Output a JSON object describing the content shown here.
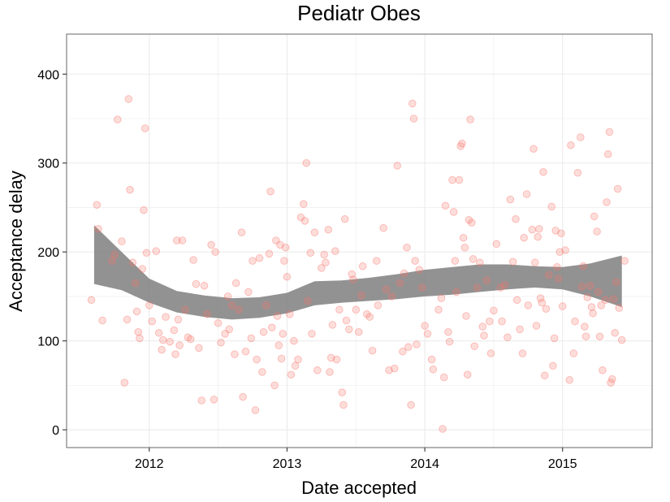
{
  "chart_data": {
    "type": "scatter",
    "title": "Pediatr Obes",
    "xlabel": "Date accepted",
    "ylabel": "Acceptance delay",
    "xlim": [
      2011.4,
      2015.65
    ],
    "ylim": [
      -20,
      445
    ],
    "x_ticks": [
      2012,
      2013,
      2014,
      2015
    ],
    "x_tick_labels": [
      "2012",
      "2013",
      "2014",
      "2015"
    ],
    "y_ticks": [
      0,
      100,
      200,
      300,
      400
    ],
    "y_tick_labels": [
      "0",
      "100",
      "200",
      "300",
      "400"
    ],
    "grid": true,
    "colors": {
      "points": "#f8766d",
      "band": "#7f7f7f",
      "grid": "#ebebeb",
      "border": "#7f7f7f"
    },
    "smooth_band": {
      "x": [
        2011.6,
        2011.8,
        2012.0,
        2012.2,
        2012.4,
        2012.6,
        2012.8,
        2013.0,
        2013.2,
        2013.4,
        2013.6,
        2013.8,
        2014.0,
        2014.2,
        2014.4,
        2014.6,
        2014.8,
        2015.0,
        2015.2,
        2015.43
      ],
      "lower": [
        164,
        157,
        143,
        132,
        127,
        124,
        126,
        131,
        140,
        143,
        145,
        147,
        150,
        152,
        155,
        158,
        160,
        158,
        150,
        138
      ],
      "upper": [
        230,
        200,
        170,
        156,
        151,
        148,
        149,
        154,
        167,
        168,
        171,
        175,
        180,
        183,
        186,
        186,
        184,
        183,
        187,
        196
      ]
    },
    "points": [
      {
        "x": 2011.62,
        "y": 253
      },
      {
        "x": 2011.63,
        "y": 226
      },
      {
        "x": 2011.58,
        "y": 146
      },
      {
        "x": 2011.66,
        "y": 123
      },
      {
        "x": 2011.73,
        "y": 190
      },
      {
        "x": 2011.75,
        "y": 197
      },
      {
        "x": 2011.77,
        "y": 349
      },
      {
        "x": 2011.8,
        "y": 212
      },
      {
        "x": 2011.82,
        "y": 53
      },
      {
        "x": 2011.84,
        "y": 124
      },
      {
        "x": 2011.85,
        "y": 372
      },
      {
        "x": 2011.86,
        "y": 270
      },
      {
        "x": 2011.88,
        "y": 188
      },
      {
        "x": 2011.9,
        "y": 165
      },
      {
        "x": 2011.91,
        "y": 133
      },
      {
        "x": 2011.92,
        "y": 110
      },
      {
        "x": 2011.93,
        "y": 103
      },
      {
        "x": 2011.95,
        "y": 181
      },
      {
        "x": 2011.96,
        "y": 247
      },
      {
        "x": 2011.97,
        "y": 339
      },
      {
        "x": 2011.98,
        "y": 199
      },
      {
        "x": 2012.0,
        "y": 140
      },
      {
        "x": 2012.02,
        "y": 122
      },
      {
        "x": 2012.05,
        "y": 201
      },
      {
        "x": 2012.07,
        "y": 109
      },
      {
        "x": 2012.09,
        "y": 90
      },
      {
        "x": 2012.1,
        "y": 101
      },
      {
        "x": 2012.12,
        "y": 127
      },
      {
        "x": 2012.15,
        "y": 99
      },
      {
        "x": 2012.18,
        "y": 112
      },
      {
        "x": 2012.19,
        "y": 85
      },
      {
        "x": 2012.2,
        "y": 213
      },
      {
        "x": 2012.21,
        "y": 124
      },
      {
        "x": 2012.22,
        "y": 95
      },
      {
        "x": 2012.24,
        "y": 213
      },
      {
        "x": 2012.26,
        "y": 135
      },
      {
        "x": 2012.28,
        "y": 104
      },
      {
        "x": 2012.3,
        "y": 102
      },
      {
        "x": 2012.32,
        "y": 191
      },
      {
        "x": 2012.34,
        "y": 164
      },
      {
        "x": 2012.36,
        "y": 92
      },
      {
        "x": 2012.38,
        "y": 33
      },
      {
        "x": 2012.4,
        "y": 162
      },
      {
        "x": 2012.42,
        "y": 130
      },
      {
        "x": 2012.45,
        "y": 208
      },
      {
        "x": 2012.47,
        "y": 34
      },
      {
        "x": 2012.48,
        "y": 200
      },
      {
        "x": 2012.5,
        "y": 120
      },
      {
        "x": 2012.52,
        "y": 98
      },
      {
        "x": 2012.55,
        "y": 108
      },
      {
        "x": 2012.57,
        "y": 150
      },
      {
        "x": 2012.58,
        "y": 113
      },
      {
        "x": 2012.6,
        "y": 140
      },
      {
        "x": 2012.62,
        "y": 85
      },
      {
        "x": 2012.63,
        "y": 165
      },
      {
        "x": 2012.65,
        "y": 135
      },
      {
        "x": 2012.67,
        "y": 222
      },
      {
        "x": 2012.68,
        "y": 37
      },
      {
        "x": 2012.7,
        "y": 88
      },
      {
        "x": 2012.72,
        "y": 155
      },
      {
        "x": 2012.74,
        "y": 103
      },
      {
        "x": 2012.75,
        "y": 190
      },
      {
        "x": 2012.77,
        "y": 22
      },
      {
        "x": 2012.78,
        "y": 79
      },
      {
        "x": 2012.8,
        "y": 193
      },
      {
        "x": 2012.82,
        "y": 65
      },
      {
        "x": 2012.83,
        "y": 110
      },
      {
        "x": 2012.85,
        "y": 140
      },
      {
        "x": 2012.87,
        "y": 198
      },
      {
        "x": 2012.88,
        "y": 268
      },
      {
        "x": 2012.89,
        "y": 115
      },
      {
        "x": 2012.91,
        "y": 50
      },
      {
        "x": 2012.92,
        "y": 213
      },
      {
        "x": 2012.93,
        "y": 128
      },
      {
        "x": 2012.94,
        "y": 95
      },
      {
        "x": 2012.95,
        "y": 208
      },
      {
        "x": 2012.96,
        "y": 80
      },
      {
        "x": 2012.97,
        "y": 108
      },
      {
        "x": 2012.98,
        "y": 190
      },
      {
        "x": 2012.99,
        "y": 205
      },
      {
        "x": 2013.0,
        "y": 172
      },
      {
        "x": 2013.02,
        "y": 130
      },
      {
        "x": 2013.03,
        "y": 62
      },
      {
        "x": 2013.05,
        "y": 100
      },
      {
        "x": 2013.06,
        "y": 72
      },
      {
        "x": 2013.08,
        "y": 79
      },
      {
        "x": 2013.1,
        "y": 239
      },
      {
        "x": 2013.12,
        "y": 254
      },
      {
        "x": 2013.13,
        "y": 235
      },
      {
        "x": 2013.14,
        "y": 300
      },
      {
        "x": 2013.15,
        "y": 145
      },
      {
        "x": 2013.17,
        "y": 199
      },
      {
        "x": 2013.18,
        "y": 108
      },
      {
        "x": 2013.2,
        "y": 222
      },
      {
        "x": 2013.22,
        "y": 67
      },
      {
        "x": 2013.25,
        "y": 182
      },
      {
        "x": 2013.27,
        "y": 197
      },
      {
        "x": 2013.28,
        "y": 188
      },
      {
        "x": 2013.3,
        "y": 225
      },
      {
        "x": 2013.31,
        "y": 65
      },
      {
        "x": 2013.32,
        "y": 81
      },
      {
        "x": 2013.33,
        "y": 118
      },
      {
        "x": 2013.35,
        "y": 201
      },
      {
        "x": 2013.36,
        "y": 79
      },
      {
        "x": 2013.38,
        "y": 135
      },
      {
        "x": 2013.4,
        "y": 42
      },
      {
        "x": 2013.41,
        "y": 28
      },
      {
        "x": 2013.42,
        "y": 237
      },
      {
        "x": 2013.43,
        "y": 123
      },
      {
        "x": 2013.45,
        "y": 113
      },
      {
        "x": 2013.47,
        "y": 175
      },
      {
        "x": 2013.48,
        "y": 169
      },
      {
        "x": 2013.5,
        "y": 135
      },
      {
        "x": 2013.52,
        "y": 110
      },
      {
        "x": 2013.54,
        "y": 151
      },
      {
        "x": 2013.55,
        "y": 184
      },
      {
        "x": 2013.58,
        "y": 130
      },
      {
        "x": 2013.6,
        "y": 127
      },
      {
        "x": 2013.62,
        "y": 89
      },
      {
        "x": 2013.65,
        "y": 190
      },
      {
        "x": 2013.66,
        "y": 140
      },
      {
        "x": 2013.7,
        "y": 227
      },
      {
        "x": 2013.72,
        "y": 158
      },
      {
        "x": 2013.74,
        "y": 67
      },
      {
        "x": 2013.76,
        "y": 150
      },
      {
        "x": 2013.78,
        "y": 69
      },
      {
        "x": 2013.8,
        "y": 297
      },
      {
        "x": 2013.82,
        "y": 165
      },
      {
        "x": 2013.84,
        "y": 88
      },
      {
        "x": 2013.85,
        "y": 176
      },
      {
        "x": 2013.87,
        "y": 205
      },
      {
        "x": 2013.88,
        "y": 93
      },
      {
        "x": 2013.9,
        "y": 28
      },
      {
        "x": 2013.91,
        "y": 367
      },
      {
        "x": 2013.92,
        "y": 350
      },
      {
        "x": 2013.93,
        "y": 190
      },
      {
        "x": 2013.94,
        "y": 96
      },
      {
        "x": 2013.96,
        "y": 180
      },
      {
        "x": 2013.98,
        "y": 160
      },
      {
        "x": 2014.0,
        "y": 117
      },
      {
        "x": 2014.02,
        "y": 108
      },
      {
        "x": 2014.05,
        "y": 79
      },
      {
        "x": 2014.06,
        "y": 68
      },
      {
        "x": 2014.1,
        "y": 135
      },
      {
        "x": 2014.12,
        "y": 148
      },
      {
        "x": 2014.13,
        "y": 1
      },
      {
        "x": 2014.14,
        "y": 59
      },
      {
        "x": 2014.15,
        "y": 252
      },
      {
        "x": 2014.17,
        "y": 110
      },
      {
        "x": 2014.18,
        "y": 99
      },
      {
        "x": 2014.2,
        "y": 281
      },
      {
        "x": 2014.21,
        "y": 245
      },
      {
        "x": 2014.22,
        "y": 190
      },
      {
        "x": 2014.23,
        "y": 155
      },
      {
        "x": 2014.25,
        "y": 281
      },
      {
        "x": 2014.26,
        "y": 319
      },
      {
        "x": 2014.27,
        "y": 322
      },
      {
        "x": 2014.28,
        "y": 216
      },
      {
        "x": 2014.29,
        "y": 205
      },
      {
        "x": 2014.3,
        "y": 128
      },
      {
        "x": 2014.31,
        "y": 62
      },
      {
        "x": 2014.32,
        "y": 236
      },
      {
        "x": 2014.33,
        "y": 349
      },
      {
        "x": 2014.34,
        "y": 233
      },
      {
        "x": 2014.35,
        "y": 192
      },
      {
        "x": 2014.36,
        "y": 94
      },
      {
        "x": 2014.38,
        "y": 160
      },
      {
        "x": 2014.4,
        "y": 188
      },
      {
        "x": 2014.42,
        "y": 116
      },
      {
        "x": 2014.43,
        "y": 106
      },
      {
        "x": 2014.45,
        "y": 168
      },
      {
        "x": 2014.47,
        "y": 122
      },
      {
        "x": 2014.48,
        "y": 86
      },
      {
        "x": 2014.5,
        "y": 134
      },
      {
        "x": 2014.52,
        "y": 209
      },
      {
        "x": 2014.55,
        "y": 160
      },
      {
        "x": 2014.56,
        "y": 122
      },
      {
        "x": 2014.58,
        "y": 163
      },
      {
        "x": 2014.6,
        "y": 104
      },
      {
        "x": 2014.62,
        "y": 259
      },
      {
        "x": 2014.64,
        "y": 189
      },
      {
        "x": 2014.66,
        "y": 237
      },
      {
        "x": 2014.67,
        "y": 146
      },
      {
        "x": 2014.69,
        "y": 113
      },
      {
        "x": 2014.71,
        "y": 86
      },
      {
        "x": 2014.72,
        "y": 216
      },
      {
        "x": 2014.74,
        "y": 265
      },
      {
        "x": 2014.75,
        "y": 140
      },
      {
        "x": 2014.78,
        "y": 225
      },
      {
        "x": 2014.79,
        "y": 316
      },
      {
        "x": 2014.8,
        "y": 188
      },
      {
        "x": 2014.81,
        "y": 117
      },
      {
        "x": 2014.82,
        "y": 217
      },
      {
        "x": 2014.83,
        "y": 226
      },
      {
        "x": 2014.84,
        "y": 148
      },
      {
        "x": 2014.85,
        "y": 143
      },
      {
        "x": 2014.86,
        "y": 290
      },
      {
        "x": 2014.87,
        "y": 61
      },
      {
        "x": 2014.88,
        "y": 136
      },
      {
        "x": 2014.9,
        "y": 174
      },
      {
        "x": 2014.92,
        "y": 251
      },
      {
        "x": 2014.93,
        "y": 72
      },
      {
        "x": 2014.94,
        "y": 103
      },
      {
        "x": 2014.95,
        "y": 224
      },
      {
        "x": 2014.96,
        "y": 183
      },
      {
        "x": 2014.97,
        "y": 170
      },
      {
        "x": 2014.98,
        "y": 200
      },
      {
        "x": 2014.99,
        "y": 221
      },
      {
        "x": 2015.0,
        "y": 139
      },
      {
        "x": 2015.02,
        "y": 202
      },
      {
        "x": 2015.05,
        "y": 56
      },
      {
        "x": 2015.06,
        "y": 320
      },
      {
        "x": 2015.08,
        "y": 86
      },
      {
        "x": 2015.09,
        "y": 122
      },
      {
        "x": 2015.11,
        "y": 289
      },
      {
        "x": 2015.13,
        "y": 329
      },
      {
        "x": 2015.14,
        "y": 161
      },
      {
        "x": 2015.15,
        "y": 184
      },
      {
        "x": 2015.16,
        "y": 116
      },
      {
        "x": 2015.17,
        "y": 105
      },
      {
        "x": 2015.18,
        "y": 149
      },
      {
        "x": 2015.2,
        "y": 162
      },
      {
        "x": 2015.21,
        "y": 138
      },
      {
        "x": 2015.22,
        "y": 131
      },
      {
        "x": 2015.23,
        "y": 240
      },
      {
        "x": 2015.25,
        "y": 223
      },
      {
        "x": 2015.26,
        "y": 155
      },
      {
        "x": 2015.27,
        "y": 105
      },
      {
        "x": 2015.28,
        "y": 140
      },
      {
        "x": 2015.29,
        "y": 67
      },
      {
        "x": 2015.31,
        "y": 146
      },
      {
        "x": 2015.32,
        "y": 256
      },
      {
        "x": 2015.33,
        "y": 310
      },
      {
        "x": 2015.34,
        "y": 335
      },
      {
        "x": 2015.35,
        "y": 53
      },
      {
        "x": 2015.36,
        "y": 57
      },
      {
        "x": 2015.37,
        "y": 147
      },
      {
        "x": 2015.38,
        "y": 109
      },
      {
        "x": 2015.39,
        "y": 166
      },
      {
        "x": 2015.4,
        "y": 271
      },
      {
        "x": 2015.41,
        "y": 137
      },
      {
        "x": 2015.43,
        "y": 101
      },
      {
        "x": 2015.45,
        "y": 190
      }
    ]
  }
}
